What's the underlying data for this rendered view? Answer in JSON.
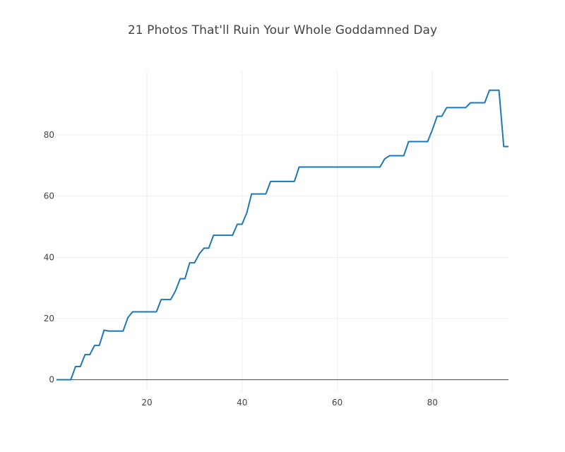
{
  "chart_data": {
    "type": "line",
    "title": "21 Photos That'll Ruin Your Whole Goddamned Day",
    "xlabel": "",
    "ylabel": "",
    "xlim": [
      1,
      96
    ],
    "ylim": [
      -4,
      101
    ],
    "x_ticks": [
      20,
      40,
      60,
      80
    ],
    "y_ticks": [
      0,
      20,
      40,
      60,
      80
    ],
    "grid": true,
    "legend": "none",
    "colors": {
      "line": "#1f77b4",
      "grid": "#eeeeee",
      "zeroline": "#444444",
      "text": "#444444"
    },
    "series": [
      {
        "points": [
          [
            1,
            0
          ],
          [
            4,
            0
          ],
          [
            5,
            4.3
          ],
          [
            6,
            4.3
          ],
          [
            7,
            8.2
          ],
          [
            8,
            8.2
          ],
          [
            9,
            11.2
          ],
          [
            10,
            11.2
          ],
          [
            11,
            16.2
          ],
          [
            12,
            15.9
          ],
          [
            15,
            15.9
          ],
          [
            16,
            20.3
          ],
          [
            17,
            22.2
          ],
          [
            22,
            22.2
          ],
          [
            23,
            26.2
          ],
          [
            25,
            26.2
          ],
          [
            26,
            29.0
          ],
          [
            27,
            33.0
          ],
          [
            28,
            33.0
          ],
          [
            29,
            38.2
          ],
          [
            30,
            38.2
          ],
          [
            31,
            41.1
          ],
          [
            32,
            43.0
          ],
          [
            33,
            43.0
          ],
          [
            34,
            47.2
          ],
          [
            38,
            47.2
          ],
          [
            39,
            50.8
          ],
          [
            40,
            50.8
          ],
          [
            41,
            54.6
          ],
          [
            42,
            60.7
          ],
          [
            45,
            60.7
          ],
          [
            46,
            64.8
          ],
          [
            51,
            64.8
          ],
          [
            52,
            69.5
          ],
          [
            69,
            69.5
          ],
          [
            70,
            72.2
          ],
          [
            71,
            73.2
          ],
          [
            74,
            73.2
          ],
          [
            75,
            77.8
          ],
          [
            79,
            77.8
          ],
          [
            80,
            81.7
          ],
          [
            81,
            86.1
          ],
          [
            82,
            86.1
          ],
          [
            83,
            88.9
          ],
          [
            87,
            88.9
          ],
          [
            88,
            90.5
          ],
          [
            91,
            90.5
          ],
          [
            92,
            94.6
          ],
          [
            94,
            94.6
          ],
          [
            95,
            76.2
          ],
          [
            96,
            76.2
          ]
        ]
      }
    ]
  }
}
